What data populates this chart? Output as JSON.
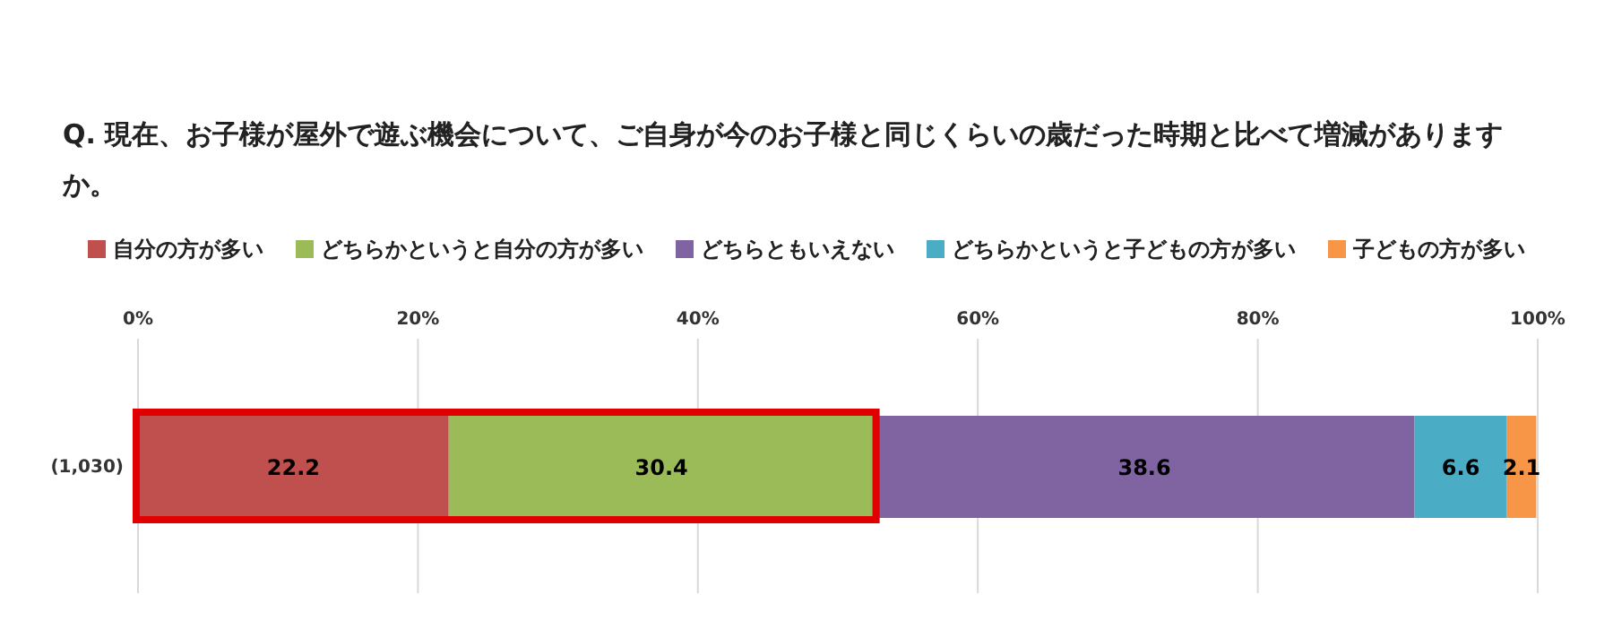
{
  "chart_data": {
    "type": "bar",
    "orientation": "horizontal",
    "stacked": true,
    "title": "Q. 現在、お子様が屋外で遊ぶ機会について、ご自身が今のお子様と同じくらいの歳だった時期と比べて増減がありますか。",
    "categories": [
      "(1,030)"
    ],
    "series": [
      {
        "name": "自分の方が多い",
        "color": "#c0504d",
        "values": [
          22.2
        ]
      },
      {
        "name": "どちらかというと自分の方が多い",
        "color": "#9bbb59",
        "values": [
          30.4
        ]
      },
      {
        "name": "どちらともいえない",
        "color": "#8064a2",
        "values": [
          38.6
        ]
      },
      {
        "name": "どちらかというと子どもの方が多い",
        "color": "#4bacc6",
        "values": [
          6.6
        ]
      },
      {
        "name": "子どもの方が多い",
        "color": "#f79646",
        "values": [
          2.1
        ]
      }
    ],
    "xlim": [
      0,
      100
    ],
    "xticks": [
      {
        "value": 0,
        "label": "0%"
      },
      {
        "value": 20,
        "label": "20%"
      },
      {
        "value": 40,
        "label": "40%"
      },
      {
        "value": 60,
        "label": "60%"
      },
      {
        "value": 80,
        "label": "80%"
      },
      {
        "value": 100,
        "label": "100%"
      }
    ],
    "grid": "x",
    "legend": "top",
    "data_labels": true
  }
}
